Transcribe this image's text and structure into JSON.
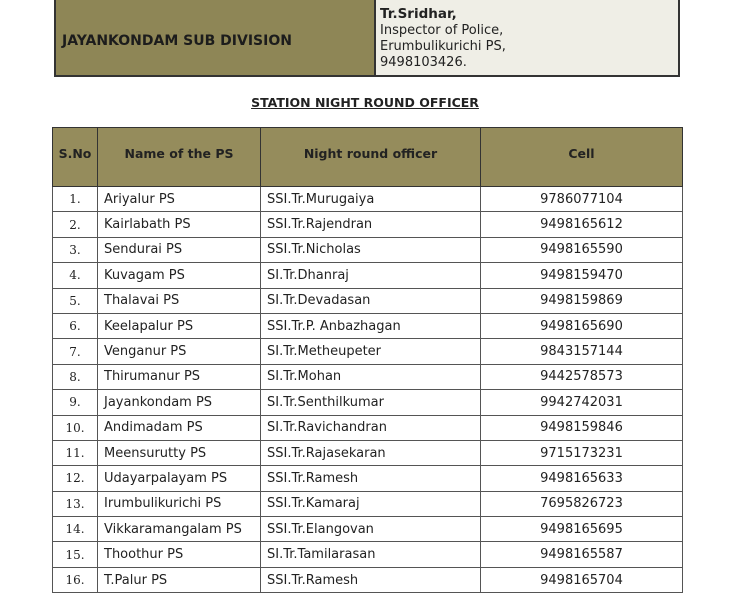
{
  "division": {
    "name": "JAYANKONDAM SUB DIVISION",
    "officer_name": "Tr.Sridhar,",
    "officer_lines": [
      "Inspector of Police,",
      "Erumbulikurichi PS,",
      "9498103426."
    ]
  },
  "section_title": "STATION NIGHT ROUND OFFICER",
  "table": {
    "headers": [
      "S.No",
      "Name of the PS",
      "Night round officer",
      "Cell"
    ],
    "rows": [
      [
        "1.",
        "Ariyalur  PS",
        "SSI.Tr.Murugaiya",
        "9786077104"
      ],
      [
        "2.",
        "Kairlabath PS",
        "SSI.Tr.Rajendran",
        "9498165612"
      ],
      [
        "3.",
        "Sendurai PS",
        "SSI.Tr.Nicholas",
        "9498165590"
      ],
      [
        "4.",
        "Kuvagam PS",
        "SI.Tr.Dhanraj",
        "9498159470"
      ],
      [
        "5.",
        "Thalavai  PS",
        "SI.Tr.Devadasan",
        "9498159869"
      ],
      [
        "6.",
        "Keelapalur PS",
        "SSI.Tr.P. Anbazhagan",
        "9498165690"
      ],
      [
        "7.",
        "Venganur PS",
        "SI.Tr.Metheupeter",
        "9843157144"
      ],
      [
        "8.",
        "Thirumanur PS",
        "SI.Tr.Mohan",
        "9442578573"
      ],
      [
        "9.",
        "Jayankondam PS",
        "SI.Tr.Senthilkumar",
        "9942742031"
      ],
      [
        "10.",
        "Andimadam PS",
        "SI.Tr.Ravichandran",
        "9498159846"
      ],
      [
        "11.",
        "Meensurutty PS",
        "SSI.Tr.Rajasekaran",
        "9715173231"
      ],
      [
        "12.",
        "Udayarpalayam PS",
        "SSI.Tr.Ramesh",
        "9498165633"
      ],
      [
        "13.",
        "Irumbulikurichi PS",
        "SSI.Tr.Kamaraj",
        "7695826723"
      ],
      [
        "14.",
        "Vikkaramangalam PS",
        "SSI.Tr.Elangovan",
        "9498165695"
      ],
      [
        "15.",
        "Thoothur PS",
        "SI.Tr.Tamilarasan",
        "9498165587"
      ],
      [
        "16.",
        "T.Palur PS",
        "SSI.Tr.Ramesh",
        "9498165704"
      ]
    ]
  },
  "colors": {
    "header_bg": "#958c5c",
    "division_bg": "#8e8656",
    "officer_bg": "#efeee6"
  }
}
